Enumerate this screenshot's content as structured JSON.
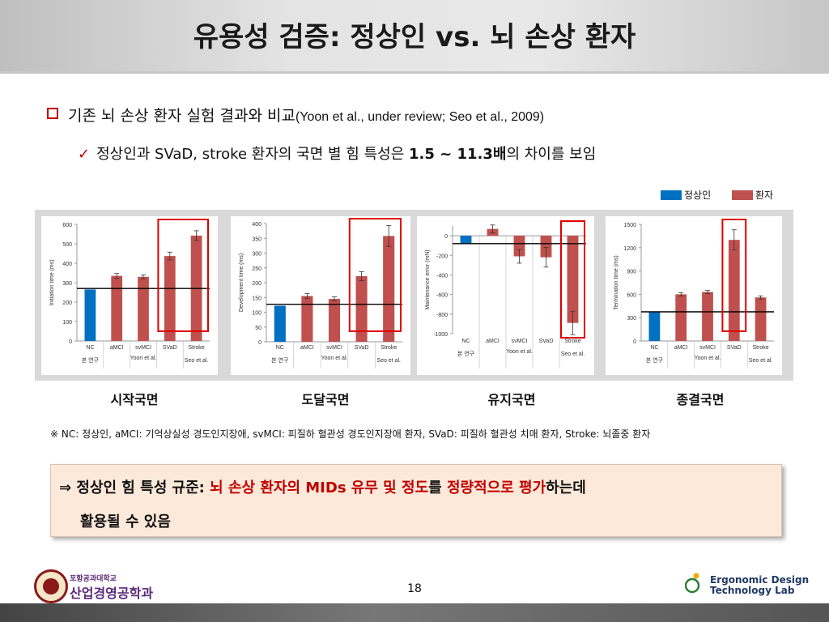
{
  "title": "유용성 검증: 정상인 vs. 뇌 손상 환자",
  "bullet1": {
    "text": "기존 뇌 손상 환자 실험 결과와 비교",
    "ref": "(Yoon et al., under review; Seo et al., 2009)"
  },
  "bullet2": {
    "text_a": "정상인과 SVaD, stroke 환자의 국면 별 힘 특성은 ",
    "bold": "1.5 ~ 11.3배",
    "text_b": "의 차이를 보임"
  },
  "legend": {
    "normal": "정상인",
    "patient": "환자",
    "normal_color": "#0070c0",
    "patient_color": "#c0504d"
  },
  "chart_data": [
    {
      "type": "bar",
      "ylabel": "Initiation time (ms)",
      "ylim": [
        0,
        600
      ],
      "yticks": [
        "0",
        "100",
        "200",
        "300",
        "400",
        "500",
        "600"
      ],
      "categories": [
        "NC",
        "aMCI",
        "svMCI",
        "SVaD",
        "Stroke"
      ],
      "values": [
        265,
        335,
        330,
        437,
        542
      ],
      "errors": [
        0,
        12,
        10,
        20,
        25
      ],
      "reference_line": 270,
      "highlight": [
        "SVaD",
        "Stroke"
      ],
      "groups": [
        "본 연구",
        "Yoon et al.",
        "Seo et al."
      ],
      "caption": "시작국면"
    },
    {
      "type": "bar",
      "ylabel": "Development time (ms)",
      "ylim": [
        0,
        400
      ],
      "yticks": [
        "0",
        "50",
        "100",
        "150",
        "200",
        "250",
        "300",
        "350",
        "400"
      ],
      "categories": [
        "NC",
        "aMCI",
        "svMCI",
        "SVaD",
        "Stroke"
      ],
      "values": [
        122,
        155,
        145,
        222,
        358
      ],
      "errors": [
        0,
        8,
        7,
        15,
        35
      ],
      "reference_line": 127,
      "highlight": [
        "SVaD",
        "Stroke"
      ],
      "groups": [
        "본 연구",
        "Yoon et al.",
        "Seo et al."
      ],
      "caption": "도달국면"
    },
    {
      "type": "bar",
      "ylabel": "Maintenance error (mN)",
      "ylim": [
        -1000,
        100
      ],
      "yticks": [
        "-1000",
        "-800",
        "-600",
        "-400",
        "-200",
        "0"
      ],
      "categories": [
        "NC",
        "aMCI",
        "svMCI",
        "SVaD",
        "Stroke"
      ],
      "values": [
        -80,
        70,
        -210,
        -220,
        -890
      ],
      "errors": [
        0,
        40,
        70,
        100,
        120
      ],
      "reference_line": -80,
      "highlight": [
        "Stroke"
      ],
      "groups": [
        "본 연구",
        "Yoon et al.",
        "Seo et al."
      ],
      "caption": "유지국면"
    },
    {
      "type": "bar",
      "ylabel": "Termination time (ms)",
      "ylim": [
        0,
        1500
      ],
      "yticks": [
        "0",
        "300",
        "600",
        "900",
        "1200",
        "1500"
      ],
      "categories": [
        "NC",
        "aMCI",
        "svMCI",
        "SVaD",
        "Stroke"
      ],
      "values": [
        370,
        600,
        630,
        1300,
        560
      ],
      "errors": [
        0,
        20,
        20,
        130,
        20
      ],
      "reference_line": 375,
      "highlight": [
        "SVaD"
      ],
      "groups": [
        "본 연구",
        "Yoon et al.",
        "Seo et al."
      ],
      "caption": "종결국면"
    }
  ],
  "footnote": "※ NC: 정상인, aMCI: 기억상실성 경도인지장애, svMCI: 피질하 혈관성 경도인지장애 환자, SVaD: 피질하 혈관성 치매 환자, Stroke: 뇌졸중 환자",
  "conclusion": {
    "arrow": "⇒ ",
    "p1": "정상인 힘 특성 규준: ",
    "r1": "뇌 손상 환자의 MIDs 유무 및 정도",
    "p2": "를 ",
    "r2": "정량적으로 평가",
    "p3": "하는데",
    "line2": "활용될 수 있음"
  },
  "footer": {
    "university_small": "포항공과대학교",
    "department": "산업경영공학과",
    "page": "18",
    "lab_line1": "Ergonomic Design",
    "lab_line2": "Technology Lab"
  }
}
